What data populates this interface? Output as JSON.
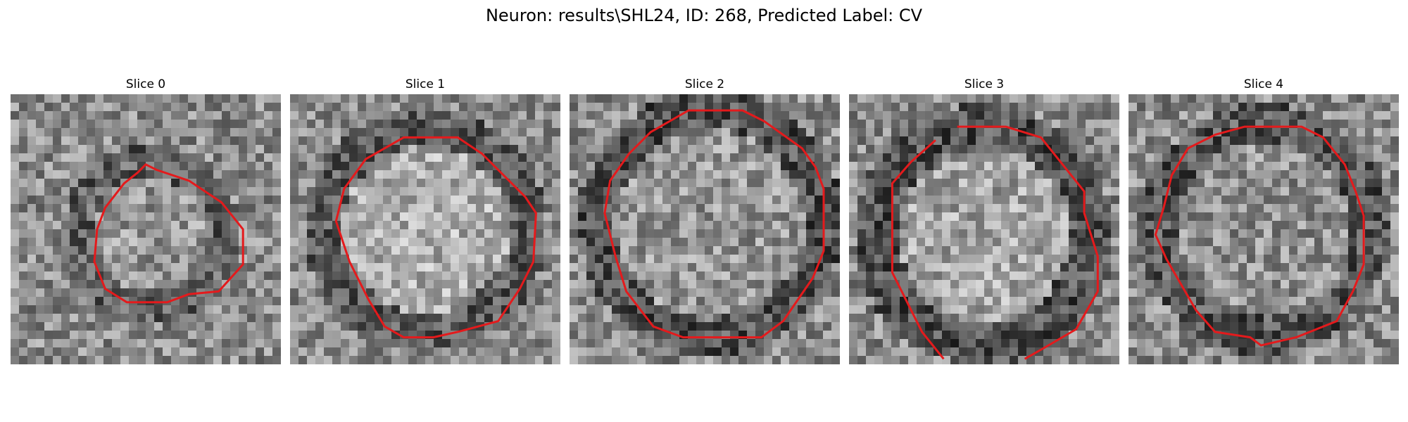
{
  "figure": {
    "title": "Neuron: results\\SHL24, ID: 268, Predicted Label: CV"
  },
  "colors": {
    "contour": "#e41a1c",
    "background": "#ffffff"
  },
  "panels": [
    {
      "title": "Slice 0",
      "image": "grayscale-noise-patch",
      "contour": "red-outline"
    },
    {
      "title": "Slice 1",
      "image": "grayscale-noise-patch",
      "contour": "red-outline"
    },
    {
      "title": "Slice 2",
      "image": "grayscale-noise-patch",
      "contour": "red-outline"
    },
    {
      "title": "Slice 3",
      "image": "grayscale-noise-patch",
      "contour": "red-outline"
    },
    {
      "title": "Slice 4",
      "image": "grayscale-noise-patch",
      "contour": "red-outline"
    }
  ]
}
